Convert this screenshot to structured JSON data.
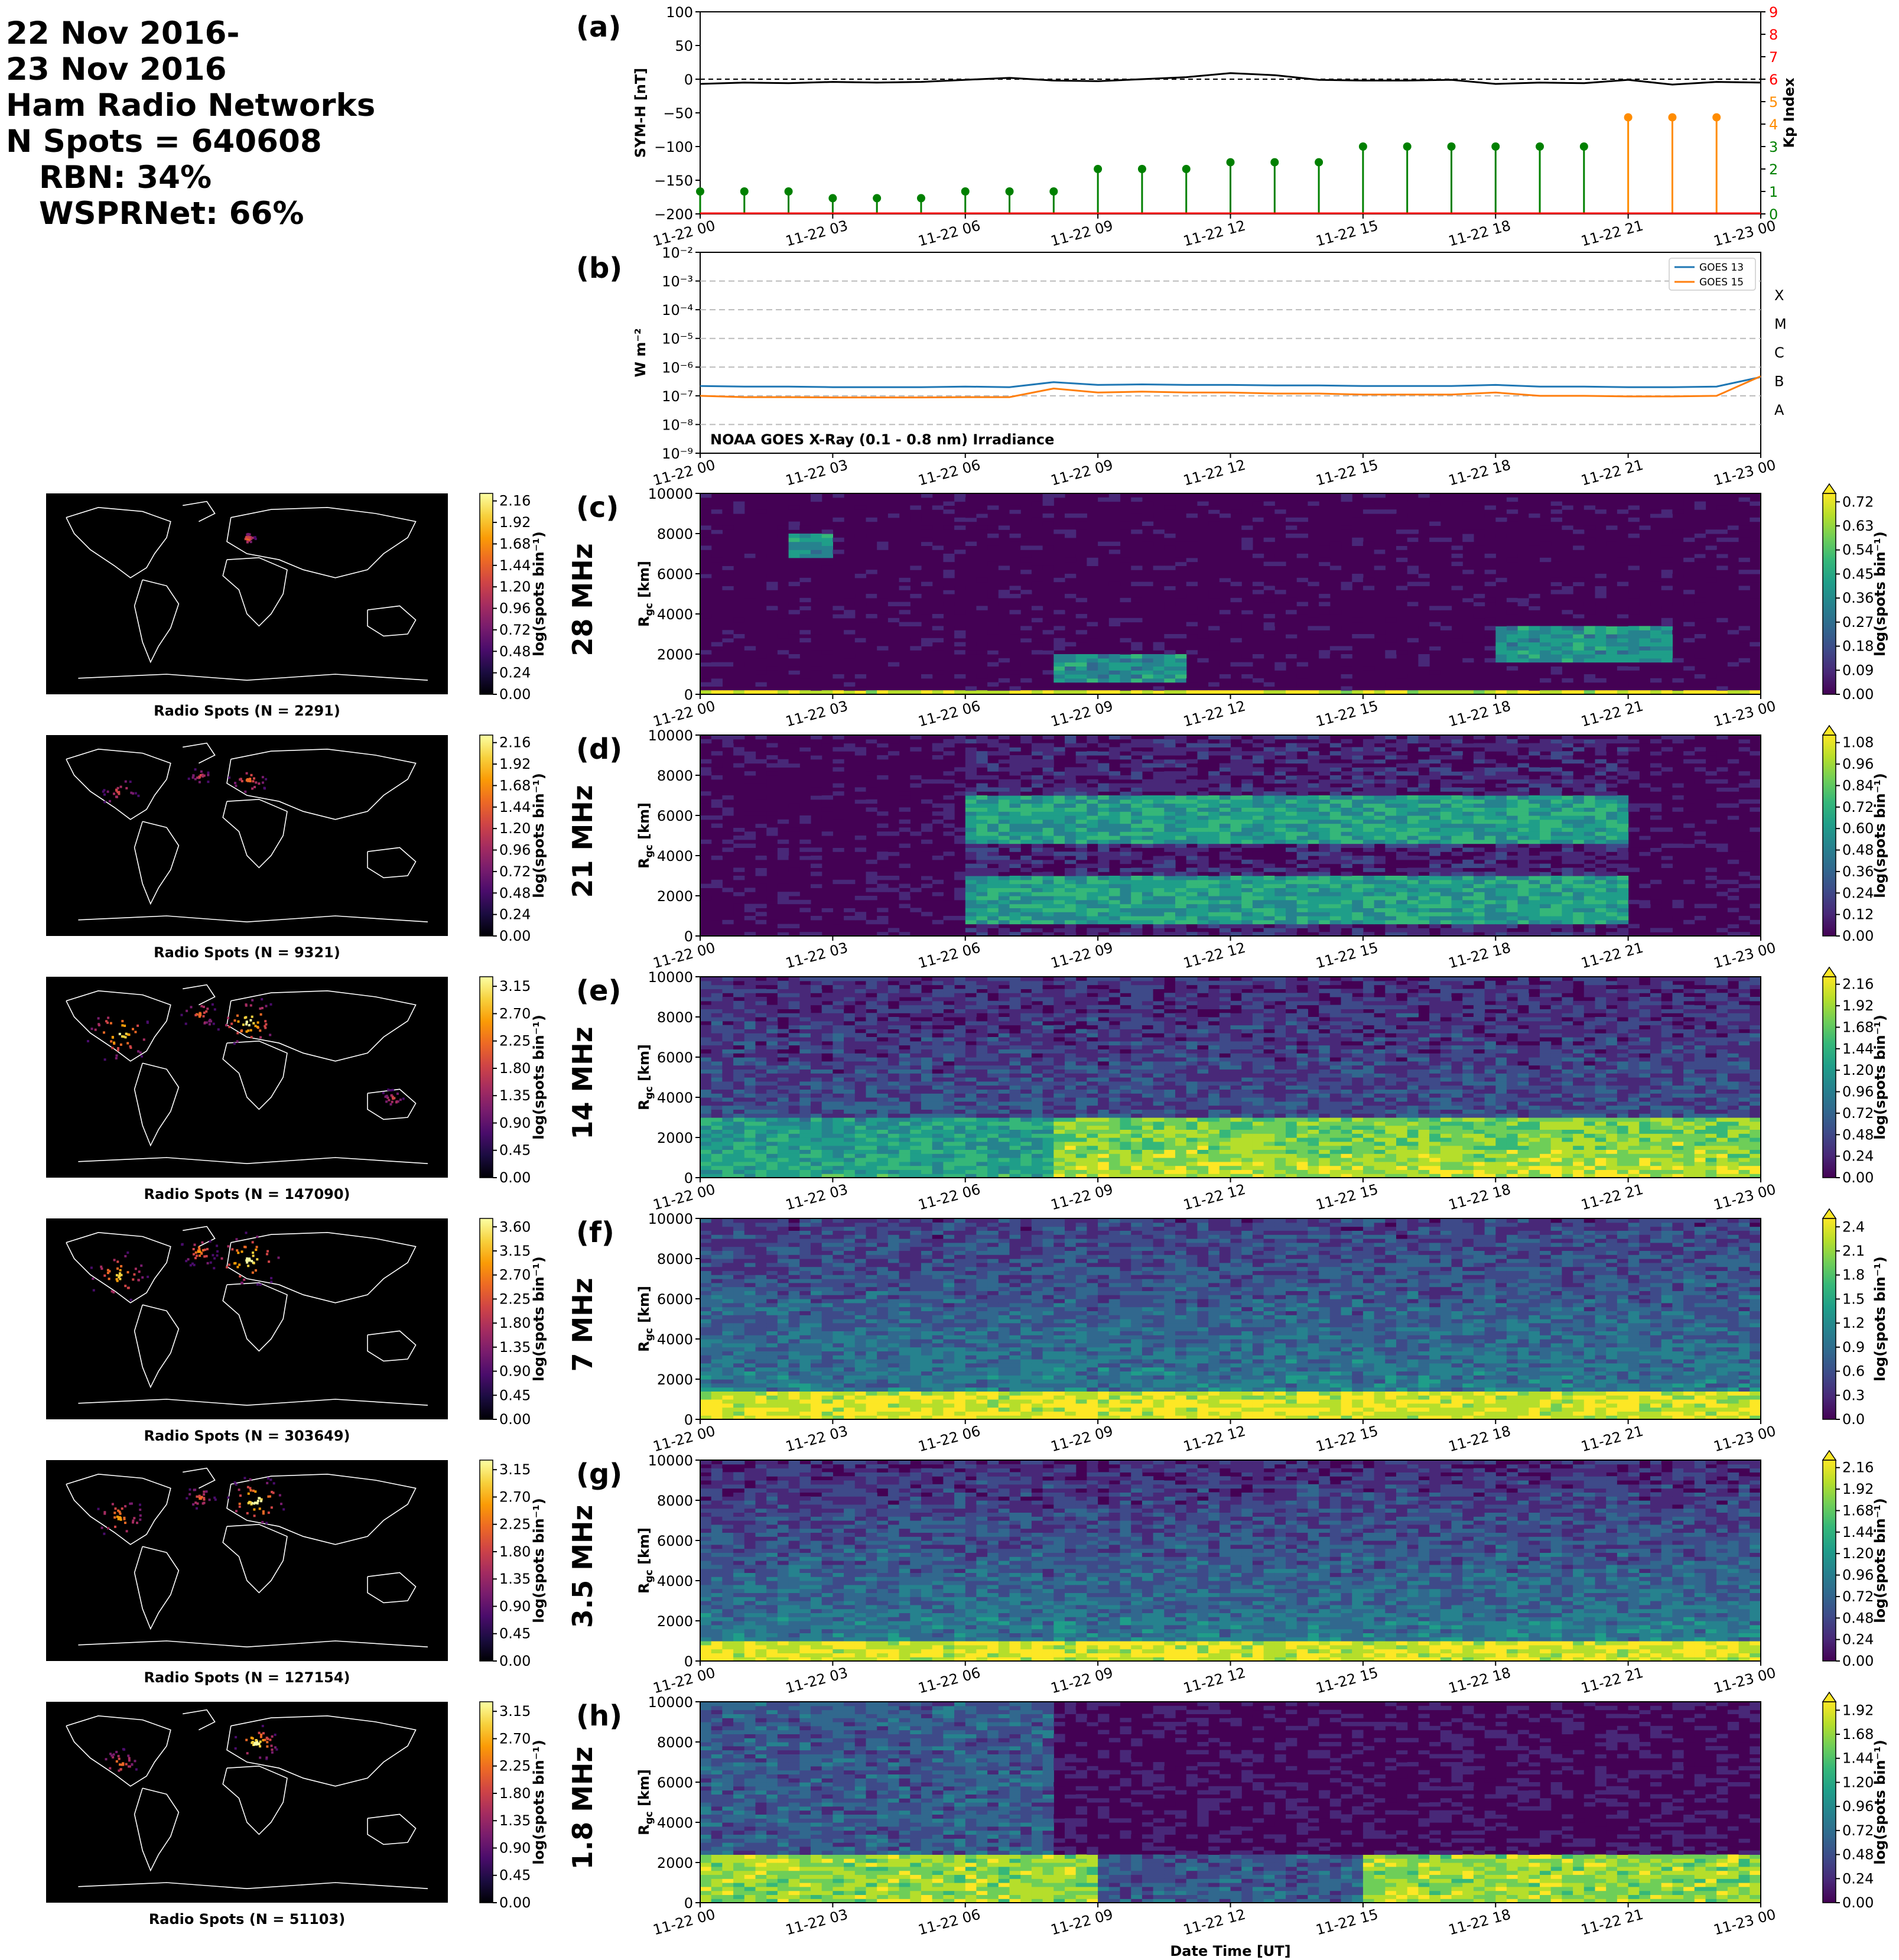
{
  "header": {
    "line1": "22 Nov 2016-",
    "line2": "23 Nov 2016",
    "line3": "Ham Radio Networks",
    "line4": "N Spots = 640608",
    "line5": "RBN: 34%",
    "line6": "WSPRNet: 66%"
  },
  "colors": {
    "symh_line": "#000000",
    "kp_low": "#008000",
    "kp_mid": "#ff8c00",
    "kp_axis": "#ff0000",
    "goes13": "#1f77b4",
    "goes15": "#ff7f0e",
    "map_bg": "#000000",
    "coast": "#ffffff"
  },
  "time_ticks": [
    "11-22 00",
    "11-22 03",
    "11-22 06",
    "11-22 09",
    "11-22 12",
    "11-22 15",
    "11-22 18",
    "11-22 21",
    "11-23 00"
  ],
  "xlabel": "Date Time [UT]",
  "chart_data": [
    {
      "id": "a",
      "type": "line",
      "letter": "(a)",
      "ylabel": "SYM-H [nT]",
      "ylim": [
        -200,
        100
      ],
      "yticks": [
        100,
        50,
        0,
        -50,
        -100,
        -150,
        -200
      ],
      "x_hours": [
        0,
        1,
        2,
        3,
        4,
        5,
        6,
        7,
        8,
        9,
        10,
        11,
        12,
        13,
        14,
        15,
        16,
        17,
        18,
        19,
        20,
        21,
        22,
        23,
        24
      ],
      "symh": [
        -7,
        -5,
        -6,
        -4,
        -5,
        -4,
        -1,
        2,
        -2,
        -3,
        0,
        3,
        9,
        6,
        -1,
        -2,
        -2,
        -1,
        -7,
        -5,
        -6,
        -1,
        -8,
        -4,
        -5
      ],
      "kp_axis_label": "Kp Index",
      "kp_ylim": [
        0,
        9
      ],
      "kp_yticks": [
        0,
        1,
        2,
        3,
        4,
        5,
        6,
        7,
        8,
        9
      ],
      "kp_hours": [
        0,
        1,
        2,
        3,
        4,
        5,
        6,
        7,
        8,
        9,
        10,
        11,
        12,
        13,
        14,
        15,
        16,
        17,
        18,
        19,
        20,
        21,
        22,
        23
      ],
      "kp_values": [
        1.0,
        1.0,
        1.0,
        0.7,
        0.7,
        0.7,
        1.0,
        1.0,
        1.0,
        2.0,
        2.0,
        2.0,
        2.3,
        2.3,
        2.3,
        3.0,
        3.0,
        3.0,
        3.0,
        3.0,
        3.0,
        4.3,
        4.3,
        4.3
      ]
    },
    {
      "id": "b",
      "type": "line",
      "letter": "(b)",
      "ylabel": "W m⁻²",
      "yscale": "log",
      "ylim": [
        1e-09,
        0.01
      ],
      "ytick_labels": [
        "10⁻⁹",
        "10⁻⁸",
        "10⁻⁷",
        "10⁻⁶",
        "10⁻⁵",
        "10⁻⁴",
        "10⁻³",
        "10⁻²"
      ],
      "class_labels": [
        "A",
        "B",
        "C",
        "M",
        "X"
      ],
      "annotation": "NOAA GOES X-Ray (0.1 - 0.8 nm) Irradiance",
      "legend": [
        "GOES 13",
        "GOES 15"
      ],
      "legend_position": "top-right",
      "x_hours": [
        0,
        1,
        2,
        3,
        4,
        5,
        6,
        7,
        8,
        9,
        10,
        11,
        12,
        13,
        14,
        15,
        16,
        17,
        18,
        19,
        20,
        21,
        22,
        23,
        24
      ],
      "goes13": [
        2.2e-07,
        2.1e-07,
        2.1e-07,
        2e-07,
        2e-07,
        2e-07,
        2.1e-07,
        2e-07,
        3e-07,
        2.4e-07,
        2.5e-07,
        2.4e-07,
        2.4e-07,
        2.3e-07,
        2.3e-07,
        2.2e-07,
        2.2e-07,
        2.2e-07,
        2.4e-07,
        2.1e-07,
        2.1e-07,
        2e-07,
        2e-07,
        2.1e-07,
        4.5e-07
      ],
      "goes15": [
        1e-07,
        9e-08,
        9e-08,
        8.8e-08,
        8.8e-08,
        8.8e-08,
        9e-08,
        9e-08,
        1.8e-07,
        1.3e-07,
        1.4e-07,
        1.3e-07,
        1.3e-07,
        1.2e-07,
        1.2e-07,
        1.1e-07,
        1.1e-07,
        1.1e-07,
        1.3e-07,
        1e-07,
        1e-07,
        9.5e-08,
        9.5e-08,
        1e-07,
        4.8e-07
      ]
    },
    {
      "id": "c",
      "type": "heatmap",
      "letter": "(c)",
      "band": "28 MHz",
      "ylim": [
        0,
        10000
      ],
      "ylabel_main": "R",
      "ylabel_sub": "gc",
      "ylabel_unit": " [km]",
      "cbar_label": "log(spots bin⁻¹)",
      "cbar_ticks": [
        "0.00",
        "0.09",
        "0.18",
        "0.27",
        "0.36",
        "0.45",
        "0.54",
        "0.63",
        "0.72"
      ],
      "map_title": "Radio Spots (N = 2291)",
      "map_cbar_ticks": [
        "0.00",
        "0.24",
        "0.48",
        "0.72",
        "0.96",
        "1.20",
        "1.44",
        "1.68",
        "1.92",
        "2.16"
      ]
    },
    {
      "id": "d",
      "type": "heatmap",
      "letter": "(d)",
      "band": "21 MHz",
      "ylim": [
        0,
        10000
      ],
      "ylabel_main": "R",
      "ylabel_sub": "gc",
      "ylabel_unit": " [km]",
      "cbar_label": "log(spots bin⁻¹)",
      "cbar_ticks": [
        "0.00",
        "0.12",
        "0.24",
        "0.36",
        "0.48",
        "0.60",
        "0.72",
        "0.84",
        "0.96",
        "1.08"
      ],
      "map_title": "Radio Spots (N = 9321)",
      "map_cbar_ticks": [
        "0.00",
        "0.24",
        "0.48",
        "0.72",
        "0.96",
        "1.20",
        "1.44",
        "1.68",
        "1.92",
        "2.16"
      ]
    },
    {
      "id": "e",
      "type": "heatmap",
      "letter": "(e)",
      "band": "14 MHz",
      "ylim": [
        0,
        10000
      ],
      "ylabel_main": "R",
      "ylabel_sub": "gc",
      "ylabel_unit": " [km]",
      "cbar_label": "log(spots bin⁻¹)",
      "cbar_ticks": [
        "0.00",
        "0.24",
        "0.48",
        "0.72",
        "0.96",
        "1.20",
        "1.44",
        "1.68",
        "1.92",
        "2.16"
      ],
      "map_title": "Radio Spots (N = 147090)",
      "map_cbar_ticks": [
        "0.00",
        "0.45",
        "0.90",
        "1.35",
        "1.80",
        "2.25",
        "2.70",
        "3.15"
      ]
    },
    {
      "id": "f",
      "type": "heatmap",
      "letter": "(f)",
      "band": "7 MHz",
      "ylim": [
        0,
        10000
      ],
      "ylabel_main": "R",
      "ylabel_sub": "gc",
      "ylabel_unit": " [km]",
      "cbar_label": "log(spots bin⁻¹)",
      "cbar_ticks": [
        "0.0",
        "0.3",
        "0.6",
        "0.9",
        "1.2",
        "1.5",
        "1.8",
        "2.1",
        "2.4"
      ],
      "map_title": "Radio Spots (N = 303649)",
      "map_cbar_ticks": [
        "0.00",
        "0.45",
        "0.90",
        "1.35",
        "1.80",
        "2.25",
        "2.70",
        "3.15",
        "3.60"
      ]
    },
    {
      "id": "g",
      "type": "heatmap",
      "letter": "(g)",
      "band": "3.5 MHz",
      "ylim": [
        0,
        10000
      ],
      "ylabel_main": "R",
      "ylabel_sub": "gc",
      "ylabel_unit": " [km]",
      "cbar_label": "log(spots bin⁻¹)",
      "cbar_ticks": [
        "0.00",
        "0.24",
        "0.48",
        "0.72",
        "0.96",
        "1.20",
        "1.44",
        "1.68",
        "1.92",
        "2.16"
      ],
      "map_title": "Radio Spots (N = 127154)",
      "map_cbar_ticks": [
        "0.00",
        "0.45",
        "0.90",
        "1.35",
        "1.80",
        "2.25",
        "2.70",
        "3.15"
      ]
    },
    {
      "id": "h",
      "type": "heatmap",
      "letter": "(h)",
      "band": "1.8 MHz",
      "ylim": [
        0,
        10000
      ],
      "ylabel_main": "R",
      "ylabel_sub": "gc",
      "ylabel_unit": " [km]",
      "cbar_label": "log(spots bin⁻¹)",
      "cbar_ticks": [
        "0.00",
        "0.24",
        "0.48",
        "0.72",
        "0.96",
        "1.20",
        "1.44",
        "1.68",
        "1.92"
      ],
      "map_title": "Radio Spots (N = 51103)",
      "map_cbar_ticks": [
        "0.00",
        "0.45",
        "0.90",
        "1.35",
        "1.80",
        "2.25",
        "2.70",
        "3.15"
      ]
    }
  ],
  "heatmap_yticks": [
    0,
    2000,
    4000,
    6000,
    8000,
    10000
  ]
}
